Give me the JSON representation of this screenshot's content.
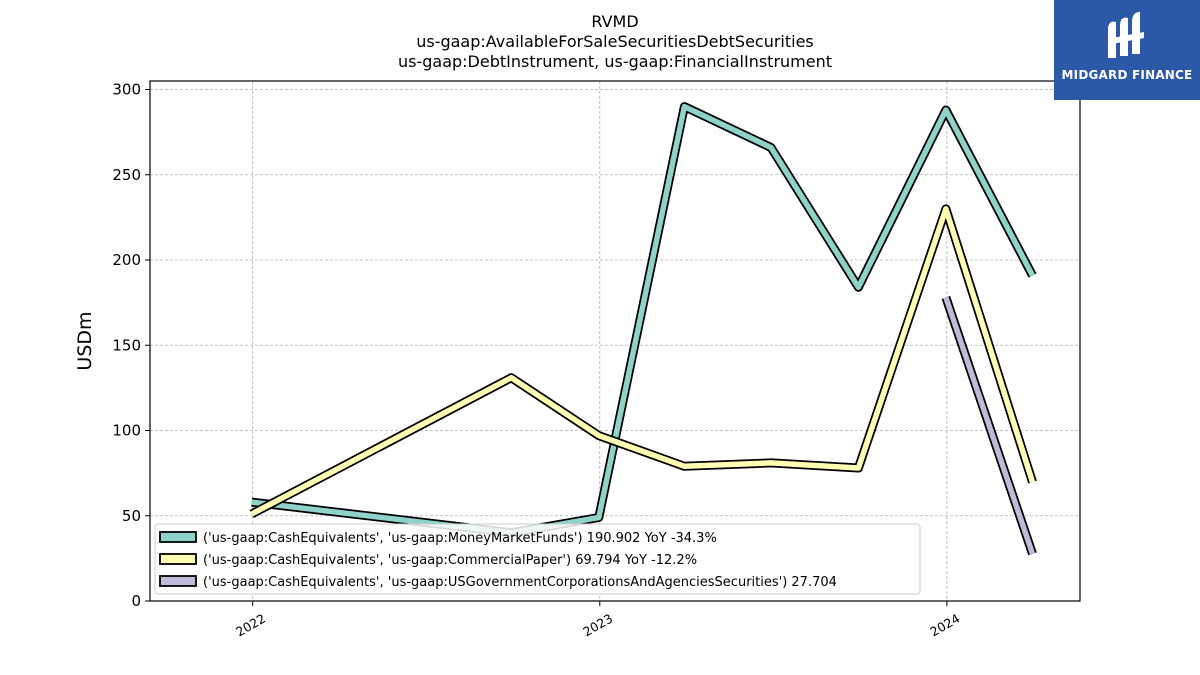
{
  "chart_data": {
    "type": "line",
    "title_lines": [
      "RVMD",
      "us-gaap:AvailableForSaleSecuritiesDebtSecurities",
      "us-gaap:DebtInstrument, us-gaap:FinancialInstrument"
    ],
    "ylabel": "USDm",
    "ylim": [
      0,
      305
    ],
    "yticks": [
      0,
      50,
      100,
      150,
      200,
      250,
      300
    ],
    "x_axis": {
      "type": "date",
      "min": "2021-09-15",
      "max": "2024-05-20",
      "ticks": [
        {
          "date": "2022-01-01",
          "label": "2022"
        },
        {
          "date": "2023-01-01",
          "label": "2023"
        },
        {
          "date": "2024-01-01",
          "label": "2024"
        }
      ]
    },
    "grid": true,
    "legend_position": "lower-left",
    "series": [
      {
        "name": "('us-gaap:CashEquivalents', 'us-gaap:MoneyMarketFunds') 190.902 YoY -34.3%",
        "color": "#8dd3c7",
        "points": [
          {
            "x": "2021-12-31",
            "y": 58
          },
          {
            "x": "2022-09-30",
            "y": 40
          },
          {
            "x": "2022-12-31",
            "y": 49
          },
          {
            "x": "2023-03-31",
            "y": 290
          },
          {
            "x": "2023-06-30",
            "y": 266
          },
          {
            "x": "2023-09-30",
            "y": 184
          },
          {
            "x": "2023-12-31",
            "y": 288
          },
          {
            "x": "2024-03-31",
            "y": 190.902
          }
        ]
      },
      {
        "name": "('us-gaap:CashEquivalents', 'us-gaap:CommercialPaper') 69.794 YoY -12.2%",
        "color": "#ffffb3",
        "points": [
          {
            "x": "2021-12-31",
            "y": 51
          },
          {
            "x": "2022-09-30",
            "y": 131
          },
          {
            "x": "2022-12-31",
            "y": 97
          },
          {
            "x": "2023-03-31",
            "y": 79
          },
          {
            "x": "2023-06-30",
            "y": 81
          },
          {
            "x": "2023-09-30",
            "y": 78
          },
          {
            "x": "2023-12-31",
            "y": 230
          },
          {
            "x": "2024-03-31",
            "y": 69.794
          }
        ]
      },
      {
        "name": "('us-gaap:CashEquivalents', 'us-gaap:USGovernmentCorporationsAndAgenciesSecurities') 27.704",
        "color": "#bebada",
        "points": [
          {
            "x": "2023-12-31",
            "y": 178
          },
          {
            "x": "2024-03-31",
            "y": 27.704
          }
        ]
      }
    ]
  },
  "branding": {
    "logo_text": "MIDGARD FINANCE",
    "logo_color": "#2b59a8"
  }
}
